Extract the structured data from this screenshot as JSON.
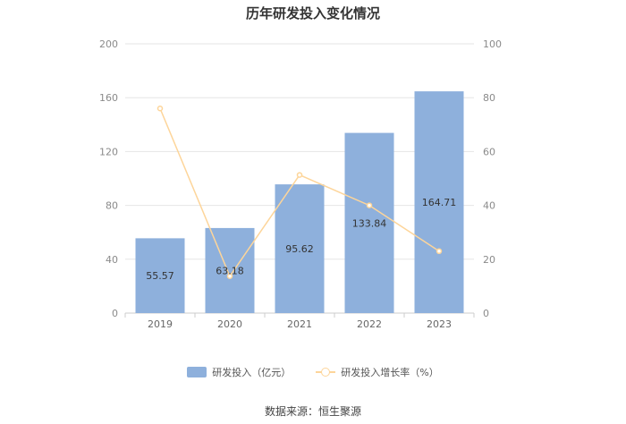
{
  "chart_data": {
    "type": "bar",
    "title": "历年研发投入变化情况",
    "categories": [
      "2019",
      "2020",
      "2021",
      "2022",
      "2023"
    ],
    "series": [
      {
        "name": "研发投入（亿元）",
        "type": "bar",
        "axis": "left",
        "color": "#8eb0dc",
        "values": [
          55.57,
          63.18,
          95.62,
          133.84,
          164.71
        ]
      },
      {
        "name": "研发投入增长率（%）",
        "type": "line",
        "axis": "right",
        "color": "#fdd59a",
        "values": [
          76,
          13.7,
          51.3,
          40,
          23
        ]
      }
    ],
    "y_left": {
      "min": 0,
      "max": 200,
      "ticks": [
        0,
        40,
        80,
        120,
        160,
        200
      ]
    },
    "y_right": {
      "min": 0,
      "max": 100,
      "ticks": [
        0,
        20,
        40,
        60,
        80,
        100
      ]
    },
    "data_labels": [
      "55.57",
      "63.18",
      "95.62",
      "133.84",
      "164.71"
    ],
    "grid": true,
    "legend_position": "bottom"
  },
  "source": "数据来源：恒生聚源"
}
